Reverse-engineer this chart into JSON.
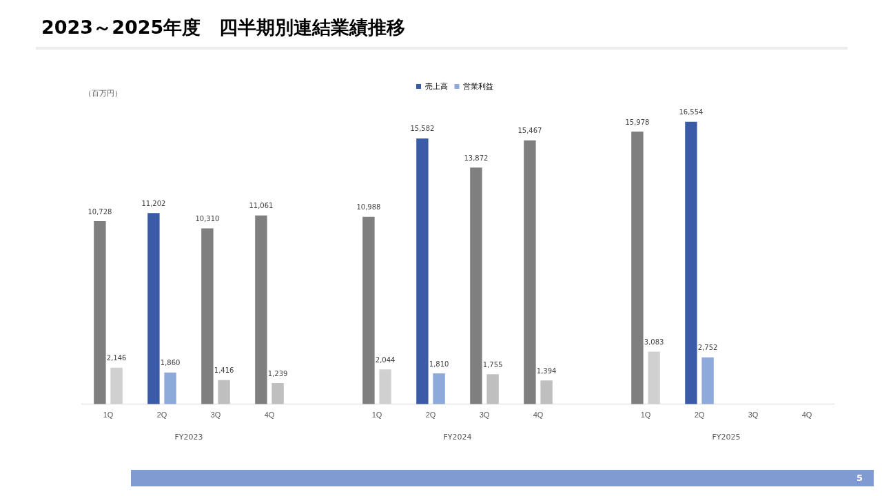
{
  "chart_data": {
    "type": "bar",
    "title": "2023～2025年度　四半期別連結業績推移",
    "ylabel": "（百万円）",
    "categories": [
      "1Q",
      "2Q",
      "3Q",
      "4Q",
      null,
      "1Q",
      "2Q",
      "3Q",
      "4Q",
      null,
      "1Q",
      "2Q",
      "3Q",
      "4Q"
    ],
    "series": [
      {
        "name": "売上高",
        "color": "#3a5ca8",
        "values": [
          10728,
          11202,
          10310,
          11061,
          null,
          10988,
          15582,
          13872,
          15467,
          null,
          15978,
          16554,
          null,
          null
        ],
        "colors": [
          "#7f7f7f",
          "#3a5ca8",
          "#7f7f7f",
          "#7f7f7f",
          "#7f7f7f",
          "#7f7f7f",
          "#3a5ca8",
          "#7f7f7f",
          "#7f7f7f",
          "#7f7f7f",
          "#7f7f7f",
          "#3a5ca8",
          "#7f7f7f",
          "#7f7f7f"
        ],
        "value_labels": [
          "10,728",
          "11,202",
          "10,310",
          "11,061",
          null,
          "10,988",
          "15,582",
          "13,872",
          "15,467",
          null,
          "15,978",
          "16,554",
          null,
          null
        ]
      },
      {
        "name": "営業利益",
        "color": "#8eaadb",
        "values": [
          2146,
          1860,
          1416,
          1239,
          null,
          2044,
          1810,
          1755,
          1394,
          null,
          3083,
          2752,
          null,
          null
        ],
        "colors": [
          "#d0d0d0",
          "#8eaadb",
          "#bfbfbf",
          "#bfbfbf",
          "#bfbfbf",
          "#d0d0d0",
          "#8eaadb",
          "#bfbfbf",
          "#bfbfbf",
          "#bfbfbf",
          "#d0d0d0",
          "#8eaadb",
          "#bfbfbf",
          "#bfbfbf"
        ],
        "value_labels": [
          "2,146",
          "1,860",
          "1,416",
          "1,239",
          null,
          "2,044",
          "1,810",
          "1,755",
          "1,394",
          null,
          "3,083",
          "2,752",
          null,
          null
        ]
      }
    ],
    "relative": false,
    "legend": "top",
    "grid": false,
    "annotations": [
      "FY2023",
      "FY2024",
      "FY2025",
      "5"
    ]
  }
}
